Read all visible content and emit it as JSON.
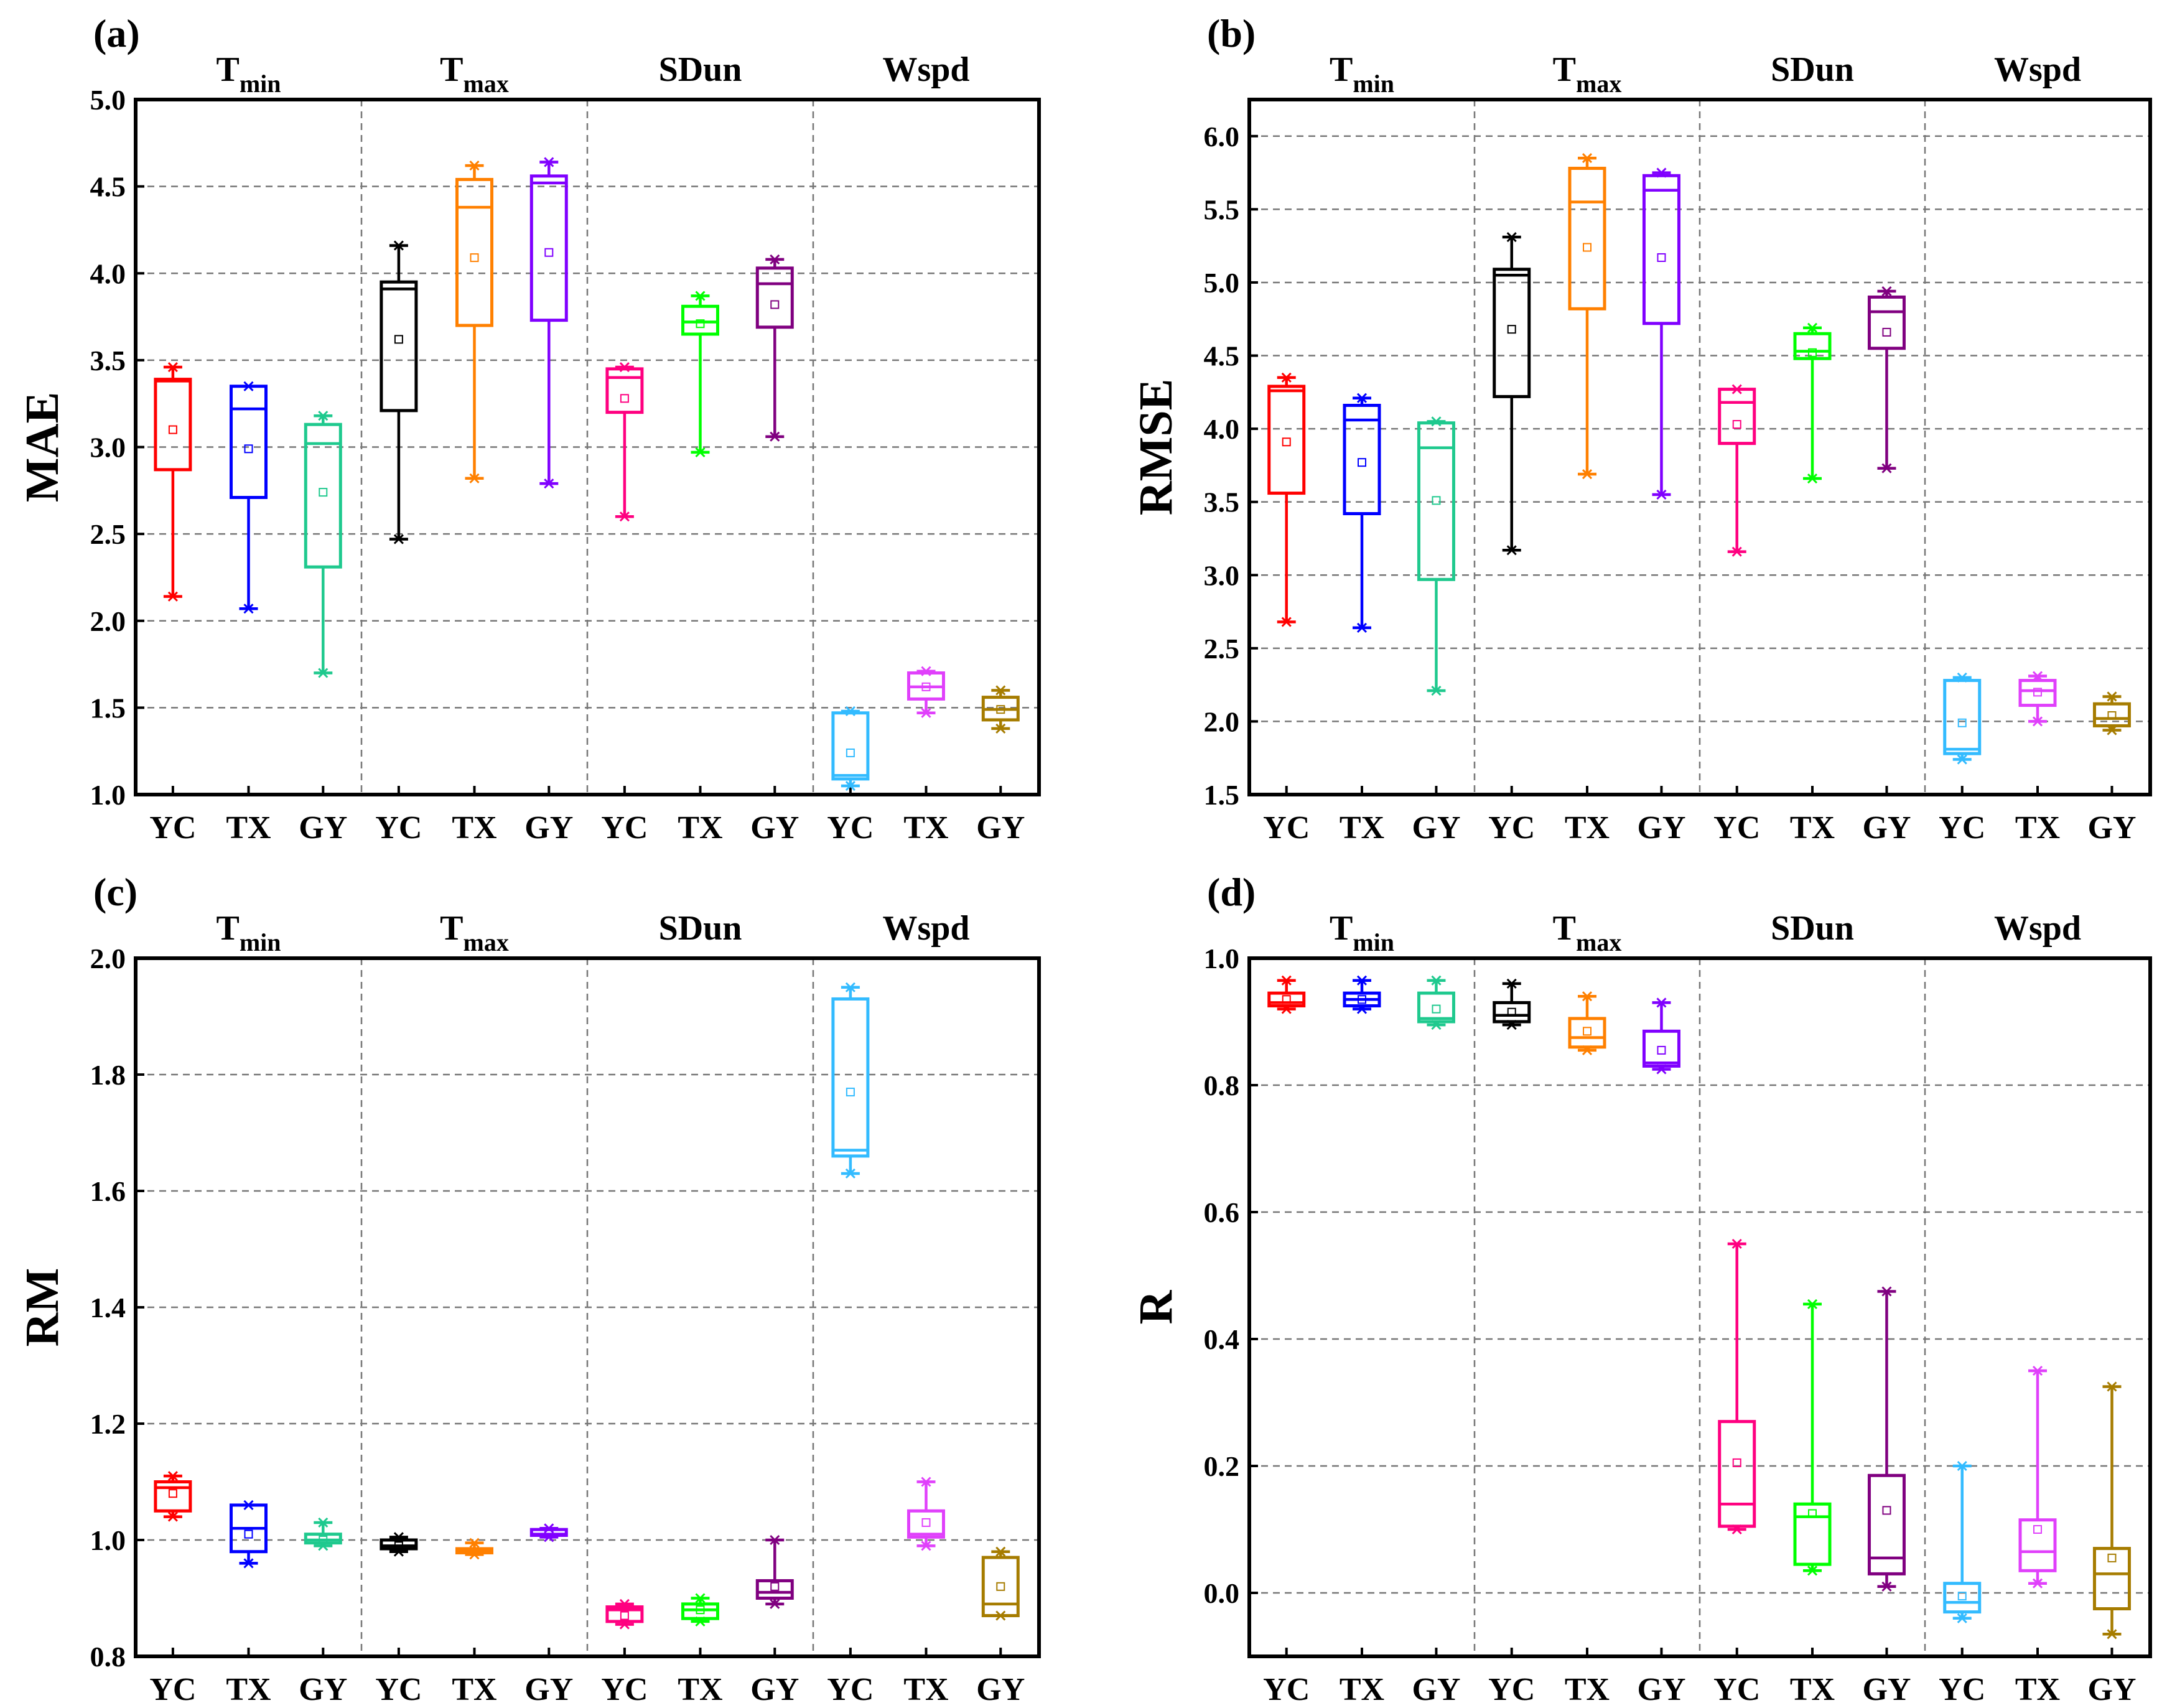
{
  "figure": {
    "categories": [
      "YC",
      "TX",
      "GY"
    ],
    "groups": [
      {
        "name": "T",
        "sub": "min"
      },
      {
        "name": "T",
        "sub": "max"
      },
      {
        "name": "SDun",
        "sub": ""
      },
      {
        "name": "Wspd",
        "sub": ""
      }
    ]
  },
  "chart_data": [
    {
      "type": "box",
      "panel_label": "(a)",
      "ylabel": "MAE",
      "ylim": [
        1.0,
        5.0
      ],
      "yticks": [
        "1.0",
        "1.5",
        "2.0",
        "2.5",
        "3.0",
        "3.5",
        "4.0",
        "4.5",
        "5.0"
      ],
      "ytick_values": [
        1.0,
        1.5,
        2.0,
        2.5,
        3.0,
        3.5,
        4.0,
        4.5,
        5.0
      ],
      "boxes": [
        {
          "group": "Tmin",
          "cat": "YC",
          "color": "#ff0000",
          "min": 2.14,
          "q1": 2.87,
          "median": 3.38,
          "q3": 3.39,
          "max": 3.46,
          "mean": 3.1
        },
        {
          "group": "Tmin",
          "cat": "TX",
          "color": "#0000ff",
          "min": 2.07,
          "q1": 2.71,
          "median": 3.22,
          "q3": 3.35,
          "max": 3.35,
          "mean": 2.99
        },
        {
          "group": "Tmin",
          "cat": "GY",
          "color": "#1fc98e",
          "min": 1.7,
          "q1": 2.31,
          "median": 3.02,
          "q3": 3.13,
          "max": 3.18,
          "mean": 2.74
        },
        {
          "group": "Tmax",
          "cat": "YC",
          "color": "#000000",
          "min": 2.47,
          "q1": 3.21,
          "median": 3.91,
          "q3": 3.95,
          "max": 4.16,
          "mean": 3.62
        },
        {
          "group": "Tmax",
          "cat": "TX",
          "color": "#ff8000",
          "min": 2.82,
          "q1": 3.7,
          "median": 4.38,
          "q3": 4.54,
          "max": 4.62,
          "mean": 4.09
        },
        {
          "group": "Tmax",
          "cat": "GY",
          "color": "#8000ff",
          "min": 2.79,
          "q1": 3.73,
          "median": 4.52,
          "q3": 4.56,
          "max": 4.64,
          "mean": 4.12
        },
        {
          "group": "SDun",
          "cat": "YC",
          "color": "#ff0080",
          "min": 2.6,
          "q1": 3.2,
          "median": 3.4,
          "q3": 3.45,
          "max": 3.46,
          "mean": 3.28
        },
        {
          "group": "SDun",
          "cat": "TX",
          "color": "#00ff00",
          "min": 2.97,
          "q1": 3.65,
          "median": 3.72,
          "q3": 3.81,
          "max": 3.87,
          "mean": 3.71
        },
        {
          "group": "SDun",
          "cat": "GY",
          "color": "#800080",
          "min": 3.06,
          "q1": 3.69,
          "median": 3.94,
          "q3": 4.03,
          "max": 4.08,
          "mean": 3.82
        },
        {
          "group": "Wspd",
          "cat": "YC",
          "color": "#33bbff",
          "min": 1.05,
          "q1": 1.09,
          "median": 1.11,
          "q3": 1.47,
          "max": 1.48,
          "mean": 1.24
        },
        {
          "group": "Wspd",
          "cat": "TX",
          "color": "#e040fb",
          "min": 1.47,
          "q1": 1.55,
          "median": 1.62,
          "q3": 1.7,
          "max": 1.71,
          "mean": 1.62
        },
        {
          "group": "Wspd",
          "cat": "GY",
          "color": "#a67c00",
          "min": 1.38,
          "q1": 1.43,
          "median": 1.49,
          "q3": 1.56,
          "max": 1.6,
          "mean": 1.49
        }
      ]
    },
    {
      "type": "box",
      "panel_label": "(b)",
      "ylabel": "RMSE",
      "ylim": [
        1.5,
        6.25
      ],
      "yticks": [
        "1.5",
        "2.0",
        "2.5",
        "3.0",
        "3.5",
        "4.0",
        "4.5",
        "5.0",
        "5.5",
        "6.0"
      ],
      "ytick_values": [
        1.5,
        2.0,
        2.5,
        3.0,
        3.5,
        4.0,
        4.5,
        5.0,
        5.5,
        6.0
      ],
      "boxes": [
        {
          "group": "Tmin",
          "cat": "YC",
          "color": "#ff0000",
          "min": 2.68,
          "q1": 3.56,
          "median": 4.26,
          "q3": 4.29,
          "max": 4.35,
          "mean": 3.91
        },
        {
          "group": "Tmin",
          "cat": "TX",
          "color": "#0000ff",
          "min": 2.64,
          "q1": 3.42,
          "median": 4.06,
          "q3": 4.16,
          "max": 4.21,
          "mean": 3.77
        },
        {
          "group": "Tmin",
          "cat": "GY",
          "color": "#1fc98e",
          "min": 2.21,
          "q1": 2.97,
          "median": 3.87,
          "q3": 4.04,
          "max": 4.05,
          "mean": 3.51
        },
        {
          "group": "Tmax",
          "cat": "YC",
          "color": "#000000",
          "min": 3.17,
          "q1": 4.22,
          "median": 5.05,
          "q3": 5.09,
          "max": 5.31,
          "mean": 4.68
        },
        {
          "group": "Tmax",
          "cat": "TX",
          "color": "#ff8000",
          "min": 3.69,
          "q1": 4.82,
          "median": 5.55,
          "q3": 5.78,
          "max": 5.85,
          "mean": 5.24
        },
        {
          "group": "Tmax",
          "cat": "GY",
          "color": "#8000ff",
          "min": 3.55,
          "q1": 4.72,
          "median": 5.63,
          "q3": 5.73,
          "max": 5.75,
          "mean": 5.17
        },
        {
          "group": "SDun",
          "cat": "YC",
          "color": "#ff0080",
          "min": 3.16,
          "q1": 3.9,
          "median": 4.18,
          "q3": 4.27,
          "max": 4.27,
          "mean": 4.03
        },
        {
          "group": "SDun",
          "cat": "TX",
          "color": "#00ff00",
          "min": 3.66,
          "q1": 4.48,
          "median": 4.53,
          "q3": 4.65,
          "max": 4.69,
          "mean": 4.52
        },
        {
          "group": "SDun",
          "cat": "GY",
          "color": "#800080",
          "min": 3.73,
          "q1": 4.55,
          "median": 4.8,
          "q3": 4.9,
          "max": 4.94,
          "mean": 4.66
        },
        {
          "group": "Wspd",
          "cat": "YC",
          "color": "#33bbff",
          "min": 1.74,
          "q1": 1.78,
          "median": 1.81,
          "q3": 2.28,
          "max": 2.3,
          "mean": 1.99
        },
        {
          "group": "Wspd",
          "cat": "TX",
          "color": "#e040fb",
          "min": 2.0,
          "q1": 2.11,
          "median": 2.21,
          "q3": 2.28,
          "max": 2.31,
          "mean": 2.2
        },
        {
          "group": "Wspd",
          "cat": "GY",
          "color": "#a67c00",
          "min": 1.94,
          "q1": 1.97,
          "median": 2.02,
          "q3": 2.12,
          "max": 2.17,
          "mean": 2.04
        }
      ]
    },
    {
      "type": "box",
      "panel_label": "(c)",
      "ylabel": "RM",
      "ylim": [
        0.8,
        2.0
      ],
      "yticks": [
        "0.8",
        "1.0",
        "1.2",
        "1.4",
        "1.6",
        "1.8",
        "2.0"
      ],
      "ytick_values": [
        0.8,
        1.0,
        1.2,
        1.4,
        1.6,
        1.8,
        2.0
      ],
      "boxes": [
        {
          "group": "Tmin",
          "cat": "YC",
          "color": "#ff0000",
          "min": 1.04,
          "q1": 1.05,
          "median": 1.09,
          "q3": 1.1,
          "max": 1.11,
          "mean": 1.08
        },
        {
          "group": "Tmin",
          "cat": "TX",
          "color": "#0000ff",
          "min": 0.96,
          "q1": 0.98,
          "median": 1.02,
          "q3": 1.06,
          "max": 1.06,
          "mean": 1.01
        },
        {
          "group": "Tmin",
          "cat": "GY",
          "color": "#1fc98e",
          "min": 0.99,
          "q1": 0.995,
          "median": 1.0,
          "q3": 1.01,
          "max": 1.03,
          "mean": 1.0
        },
        {
          "group": "Tmax",
          "cat": "YC",
          "color": "#000000",
          "min": 0.98,
          "q1": 0.985,
          "median": 0.99,
          "q3": 1.0,
          "max": 1.005,
          "mean": 0.99
        },
        {
          "group": "Tmax",
          "cat": "TX",
          "color": "#ff8000",
          "min": 0.975,
          "q1": 0.978,
          "median": 0.98,
          "q3": 0.985,
          "max": 0.995,
          "mean": 0.98
        },
        {
          "group": "Tmax",
          "cat": "GY",
          "color": "#8000ff",
          "min": 1.005,
          "q1": 1.008,
          "median": 1.01,
          "q3": 1.018,
          "max": 1.02,
          "mean": 1.01
        },
        {
          "group": "SDun",
          "cat": "YC",
          "color": "#ff0080",
          "min": 0.855,
          "q1": 0.86,
          "median": 0.88,
          "q3": 0.885,
          "max": 0.89,
          "mean": 0.87
        },
        {
          "group": "SDun",
          "cat": "TX",
          "color": "#00ff00",
          "min": 0.86,
          "q1": 0.865,
          "median": 0.88,
          "q3": 0.89,
          "max": 0.9,
          "mean": 0.88
        },
        {
          "group": "SDun",
          "cat": "GY",
          "color": "#800080",
          "min": 0.89,
          "q1": 0.9,
          "median": 0.91,
          "q3": 0.93,
          "max": 1.0,
          "mean": 0.92
        },
        {
          "group": "Wspd",
          "cat": "YC",
          "color": "#33bbff",
          "min": 1.63,
          "q1": 1.66,
          "median": 1.67,
          "q3": 1.93,
          "max": 1.95,
          "mean": 1.77
        },
        {
          "group": "Wspd",
          "cat": "TX",
          "color": "#e040fb",
          "min": 0.99,
          "q1": 1.005,
          "median": 1.01,
          "q3": 1.05,
          "max": 1.1,
          "mean": 1.03
        },
        {
          "group": "Wspd",
          "cat": "GY",
          "color": "#a67c00",
          "min": 0.87,
          "q1": 0.87,
          "median": 0.89,
          "q3": 0.97,
          "max": 0.98,
          "mean": 0.92
        }
      ]
    },
    {
      "type": "box",
      "panel_label": "(d)",
      "ylabel": "R",
      "ylim": [
        -0.1,
        1.0
      ],
      "yticks": [
        "0.0",
        "0.2",
        "0.4",
        "0.6",
        "0.8",
        "1.0"
      ],
      "ytick_values": [
        0.0,
        0.2,
        0.4,
        0.6,
        0.8,
        1.0
      ],
      "boxes": [
        {
          "group": "Tmin",
          "cat": "YC",
          "color": "#ff0000",
          "min": 0.92,
          "q1": 0.925,
          "median": 0.93,
          "q3": 0.945,
          "max": 0.965,
          "mean": 0.935
        },
        {
          "group": "Tmin",
          "cat": "TX",
          "color": "#0000ff",
          "min": 0.92,
          "q1": 0.925,
          "median": 0.935,
          "q3": 0.945,
          "max": 0.965,
          "mean": 0.935
        },
        {
          "group": "Tmin",
          "cat": "GY",
          "color": "#1fc98e",
          "min": 0.895,
          "q1": 0.9,
          "median": 0.905,
          "q3": 0.945,
          "max": 0.965,
          "mean": 0.92
        },
        {
          "group": "Tmax",
          "cat": "YC",
          "color": "#000000",
          "min": 0.895,
          "q1": 0.9,
          "median": 0.91,
          "q3": 0.93,
          "max": 0.96,
          "mean": 0.915
        },
        {
          "group": "Tmax",
          "cat": "TX",
          "color": "#ff8000",
          "min": 0.855,
          "q1": 0.86,
          "median": 0.875,
          "q3": 0.905,
          "max": 0.94,
          "mean": 0.885
        },
        {
          "group": "Tmax",
          "cat": "GY",
          "color": "#8000ff",
          "min": 0.825,
          "q1": 0.83,
          "median": 0.835,
          "q3": 0.885,
          "max": 0.93,
          "mean": 0.855
        },
        {
          "group": "SDun",
          "cat": "YC",
          "color": "#ff0080",
          "min": 0.1,
          "q1": 0.105,
          "median": 0.14,
          "q3": 0.27,
          "max": 0.55,
          "mean": 0.205
        },
        {
          "group": "SDun",
          "cat": "TX",
          "color": "#00ff00",
          "min": 0.035,
          "q1": 0.045,
          "median": 0.12,
          "q3": 0.14,
          "max": 0.455,
          "mean": 0.125
        },
        {
          "group": "SDun",
          "cat": "GY",
          "color": "#800080",
          "min": 0.01,
          "q1": 0.03,
          "median": 0.055,
          "q3": 0.185,
          "max": 0.475,
          "mean": 0.13
        },
        {
          "group": "Wspd",
          "cat": "YC",
          "color": "#33bbff",
          "min": -0.04,
          "q1": -0.03,
          "median": -0.015,
          "q3": 0.015,
          "max": 0.2,
          "mean": -0.005
        },
        {
          "group": "Wspd",
          "cat": "TX",
          "color": "#e040fb",
          "min": 0.015,
          "q1": 0.035,
          "median": 0.065,
          "q3": 0.115,
          "max": 0.35,
          "mean": 0.1
        },
        {
          "group": "Wspd",
          "cat": "GY",
          "color": "#a67c00",
          "min": -0.065,
          "q1": -0.025,
          "median": 0.03,
          "q3": 0.07,
          "max": 0.325,
          "mean": 0.055
        }
      ]
    }
  ]
}
